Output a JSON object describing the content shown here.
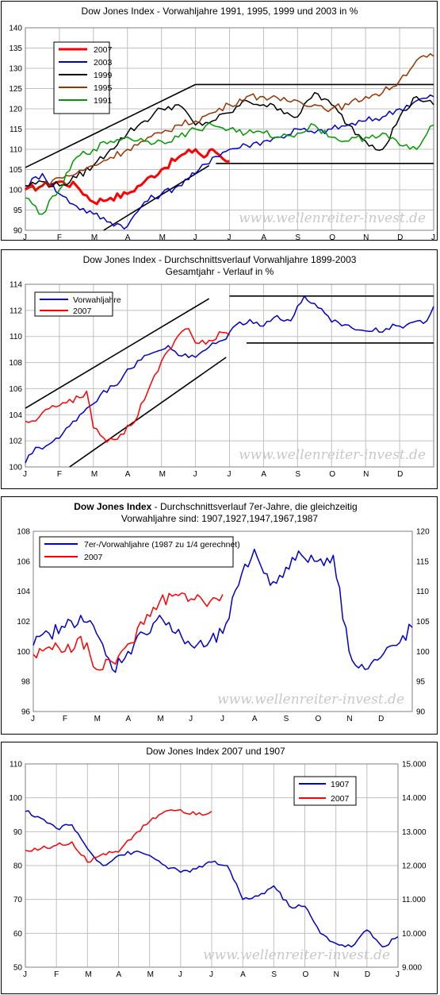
{
  "chart_data": [
    {
      "type": "line",
      "title": "Dow Jones Index - Vorwahljahre 1991, 1995, 1999 und 2003 in %",
      "x_ticks": [
        "J",
        "F",
        "M",
        "A",
        "M",
        "J",
        "J",
        "A",
        "S",
        "O",
        "N",
        "D",
        "J"
      ],
      "ylim": [
        90,
        140
      ],
      "y_ticks": [
        90,
        95,
        100,
        105,
        110,
        115,
        120,
        125,
        130,
        135,
        140
      ],
      "grid": true,
      "legend_position": "top-left",
      "watermark": "www.wellenreiter-invest.de",
      "series": [
        {
          "name": "2007",
          "color": "#ff0000",
          "width": 3,
          "x": [
            0,
            0.5,
            1,
            1.5,
            2,
            2.5,
            3,
            3.5,
            4,
            4.5,
            5,
            5.25,
            5.5,
            6
          ],
          "y": [
            100,
            101,
            102,
            101,
            97,
            98,
            99,
            102,
            105,
            108,
            110,
            108,
            110,
            107
          ]
        },
        {
          "name": "2003",
          "color": "#0000cc",
          "width": 1.5,
          "x": [
            0,
            0.5,
            1,
            1.5,
            2,
            2.5,
            3,
            3.5,
            4,
            4.5,
            5,
            5.5,
            6,
            6.5,
            7,
            7.5,
            8,
            8.5,
            9,
            9.5,
            10,
            10.5,
            11,
            11.5,
            12
          ],
          "y": [
            101,
            104,
            99,
            96,
            94,
            92,
            91,
            97,
            99,
            101,
            104,
            108,
            110,
            111,
            112,
            113,
            115,
            114,
            115,
            116,
            117,
            118,
            120,
            122,
            123
          ]
        },
        {
          "name": "1999",
          "color": "#000000",
          "width": 1.5,
          "x": [
            0,
            0.5,
            1,
            1.5,
            2,
            2.5,
            3,
            3.5,
            4,
            4.5,
            5,
            5.5,
            6,
            6.5,
            7,
            7.5,
            8,
            8.5,
            9,
            9.5,
            10,
            10.5,
            11,
            11.5,
            12
          ],
          "y": [
            101,
            102,
            101,
            103,
            106,
            110,
            114,
            117,
            120,
            121,
            116,
            117,
            119,
            122,
            121,
            120,
            118,
            124,
            121,
            116,
            112,
            110,
            118,
            123,
            121
          ]
        },
        {
          "name": "1995",
          "color": "#993300",
          "width": 1.5,
          "x": [
            0,
            0.5,
            1,
            1.5,
            2,
            2.5,
            3,
            3.5,
            4,
            4.5,
            5,
            5.5,
            6,
            6.5,
            7,
            7.5,
            8,
            8.5,
            9,
            9.5,
            10,
            10.5,
            11,
            11.5,
            12
          ],
          "y": [
            100,
            101,
            103,
            104,
            106,
            108,
            110,
            112,
            114,
            116,
            117,
            119,
            121,
            123,
            123,
            122,
            122,
            121,
            120,
            121,
            123,
            124,
            127,
            132,
            133
          ]
        },
        {
          "name": "1991",
          "color": "#009900",
          "width": 1.5,
          "x": [
            0,
            0.5,
            1,
            1.5,
            2,
            2.5,
            3,
            3.5,
            4,
            4.5,
            5,
            5.5,
            6,
            6.5,
            7,
            7.5,
            8,
            8.5,
            9,
            9.5,
            10,
            10.5,
            11,
            11.5,
            12
          ],
          "y": [
            98,
            94,
            100,
            108,
            110,
            112,
            113,
            112,
            112,
            113,
            115,
            116,
            115,
            114,
            114,
            113,
            114,
            116,
            113,
            112,
            113,
            114,
            111,
            110,
            116
          ]
        }
      ],
      "lines_drawn": [
        {
          "x": [
            0,
            5
          ],
          "y": [
            105.5,
            126
          ],
          "color": "#000000"
        },
        {
          "x": [
            2.3,
            5.4
          ],
          "y": [
            90,
            106
          ],
          "color": "#000000"
        },
        {
          "x": [
            5,
            12
          ],
          "y": [
            126,
            126
          ],
          "color": "#000000"
        },
        {
          "x": [
            5.6,
            12
          ],
          "y": [
            106.5,
            106.5
          ],
          "color": "#000000"
        }
      ]
    },
    {
      "type": "line",
      "title": "Dow Jones Index - Durchschnittsverlauf Vorwahljahre 1899-2003",
      "subtitle": "Gesamtjahr - Verlauf in %",
      "x_ticks": [
        "J",
        "F",
        "M",
        "A",
        "M",
        "J",
        "J",
        "A",
        "S",
        "O",
        "N",
        "D"
      ],
      "ylim": [
        100,
        114
      ],
      "y_ticks": [
        100,
        102,
        104,
        106,
        108,
        110,
        112,
        114
      ],
      "grid": true,
      "legend_position": "top-left",
      "watermark": "www.wellenreiter-invest.de",
      "series": [
        {
          "name": "Vorwahljahre",
          "color": "#0000cc",
          "width": 1.5,
          "x": [
            0,
            0.3,
            0.6,
            1,
            1.4,
            1.8,
            2.2,
            2.6,
            3,
            3.4,
            3.8,
            4.2,
            4.6,
            5,
            5.4,
            5.8,
            6.2,
            6.6,
            7,
            7.4,
            7.8,
            8.2,
            8.6,
            9,
            9.4,
            9.8,
            10.2,
            10.6,
            11,
            11.4,
            11.8,
            12
          ],
          "y": [
            100.3,
            101.5,
            101.6,
            102.2,
            103.5,
            104.5,
            105.5,
            106.2,
            107.5,
            108.2,
            108.8,
            109.3,
            108.5,
            108.4,
            109.2,
            109.7,
            110.9,
            111.3,
            110.8,
            111.6,
            111.2,
            113.1,
            112.2,
            111.1,
            110.9,
            110.5,
            110.4,
            110.6,
            110.8,
            111.1,
            111.2,
            112.3
          ]
        },
        {
          "name": "2007",
          "color": "#ff0000",
          "width": 1.5,
          "x": [
            0,
            0.4,
            0.8,
            1.2,
            1.6,
            1.8,
            2,
            2.4,
            2.8,
            3.2,
            3.6,
            4,
            4.4,
            4.8,
            5,
            5.4,
            5.8,
            6
          ],
          "y": [
            103.5,
            103.8,
            104.7,
            104.9,
            105.3,
            105.8,
            103.0,
            101.9,
            102.5,
            103.4,
            105.8,
            108.1,
            109.7,
            110.6,
            109.5,
            109.7,
            110.3,
            110.1
          ]
        }
      ],
      "lines_drawn": [
        {
          "x": [
            0,
            5.4
          ],
          "y": [
            104.5,
            112.9
          ],
          "color": "#000000"
        },
        {
          "x": [
            1.3,
            5.9
          ],
          "y": [
            100,
            108.4
          ],
          "color": "#000000"
        },
        {
          "x": [
            6,
            12
          ],
          "y": [
            113.1,
            113.1
          ],
          "color": "#000000"
        },
        {
          "x": [
            6.5,
            12
          ],
          "y": [
            109.5,
            109.5
          ],
          "color": "#000000"
        }
      ]
    },
    {
      "type": "line",
      "title": "Dow Jones Index",
      "title_rest": "- Durchschnittsverlauf 7er-Jahre, die gleichzeitig",
      "subtitle": "Vorwahljahre sind: 1907,1927,1947,1967,1987",
      "x_ticks": [
        "J",
        "F",
        "M",
        "A",
        "M",
        "J",
        "J",
        "A",
        "S",
        "O",
        "N",
        "D"
      ],
      "ylim": [
        96,
        108
      ],
      "y_ticks": [
        96,
        98,
        100,
        102,
        104,
        106,
        108
      ],
      "y2lim": [
        90,
        120
      ],
      "y2_ticks": [
        90,
        95,
        100,
        105,
        110,
        115,
        120
      ],
      "grid": false,
      "legend_position": "top-left",
      "watermark": "www.wellenreiter-invest.de",
      "series": [
        {
          "name": "7er-/Vorwahljahre (1987 zu 1/4 gerechnet)",
          "color": "#0000cc",
          "width": 1.5,
          "axis": "right",
          "x": [
            0,
            0.5,
            1,
            1.5,
            2,
            2.5,
            3,
            3.5,
            4,
            4.5,
            5,
            5.5,
            6,
            6.5,
            7,
            7.5,
            8,
            8.5,
            9,
            9.5,
            10,
            10.5,
            11,
            11.5,
            12
          ],
          "y": [
            101,
            103,
            104,
            106,
            103,
            97,
            100,
            103,
            106,
            103,
            101,
            101,
            103,
            111,
            117,
            111,
            114,
            116,
            115,
            116,
            100,
            97,
            99,
            101,
            104
          ]
        },
        {
          "name": "2007",
          "color": "#ff0000",
          "width": 1.5,
          "axis": "left",
          "x": [
            0,
            0.5,
            1,
            1.5,
            2,
            2.5,
            3,
            3.5,
            4,
            4.5,
            5,
            5.5,
            6
          ],
          "y": [
            99.8,
            100.3,
            100.0,
            101.0,
            98.8,
            99.3,
            100.5,
            101.8,
            103.3,
            103.8,
            103.5,
            103.0,
            103.8
          ]
        }
      ]
    },
    {
      "type": "line",
      "title": "Dow Jones Index 2007 und 1907",
      "x_ticks": [
        "J",
        "F",
        "M",
        "A",
        "M",
        "J",
        "J",
        "A",
        "S",
        "O",
        "N",
        "D",
        "J"
      ],
      "ylim": [
        50,
        110
      ],
      "y_ticks": [
        50,
        60,
        70,
        80,
        90,
        100,
        110
      ],
      "y2lim": [
        9000,
        15000
      ],
      "y2_ticks": [
        "9.000",
        "10.000",
        "11.000",
        "12.000",
        "13.000",
        "14.000",
        "15.000"
      ],
      "grid": true,
      "legend_position": "top-right",
      "watermark": "www.wellenreiter-invest.de",
      "series": [
        {
          "name": "1907",
          "color": "#0000cc",
          "width": 1.5,
          "axis": "left",
          "x": [
            0,
            0.5,
            1,
            1.5,
            2,
            2.5,
            3,
            3.5,
            4,
            4.5,
            5,
            5.5,
            6,
            6.5,
            7,
            7.5,
            8,
            8.5,
            9,
            9.5,
            10,
            10.5,
            11,
            11.5,
            12
          ],
          "y": [
            96,
            94,
            91,
            92,
            85,
            80,
            83,
            84,
            83,
            80,
            78,
            79,
            81,
            80,
            70,
            71,
            74,
            68,
            68,
            60,
            57,
            56,
            61,
            56,
            59
          ]
        },
        {
          "name": "2007",
          "color": "#ff0000",
          "width": 1.5,
          "axis": "right",
          "x": [
            0,
            0.5,
            1,
            1.5,
            2,
            2.5,
            3,
            3.5,
            4,
            4.5,
            5,
            5.5,
            6
          ],
          "y": [
            12450,
            12500,
            12600,
            12700,
            12100,
            12350,
            12400,
            12900,
            13300,
            13600,
            13650,
            13500,
            13600
          ]
        }
      ]
    }
  ]
}
